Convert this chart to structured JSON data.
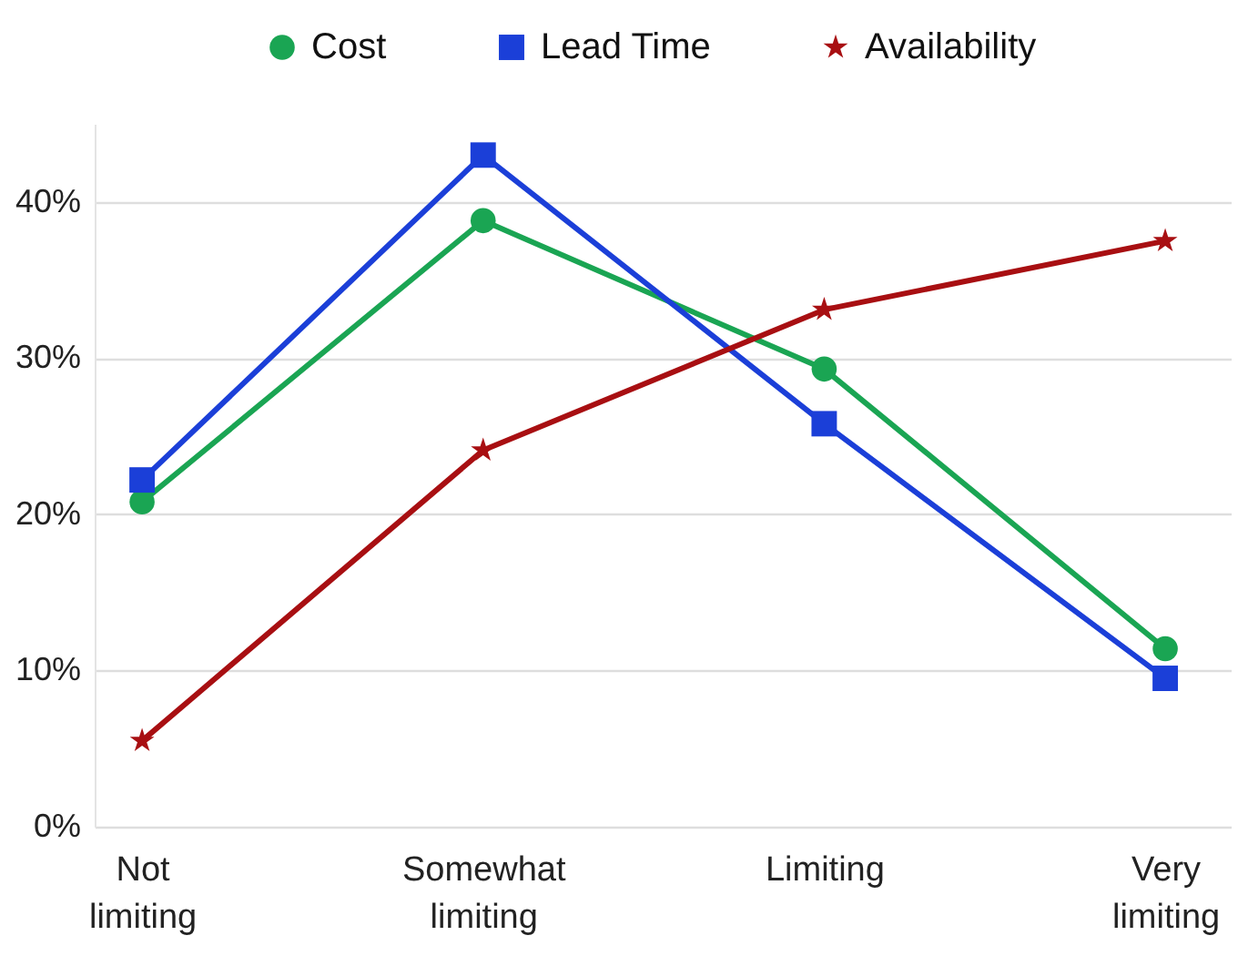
{
  "chart_data": {
    "type": "line",
    "categories": [
      "Not limiting",
      "Somewhat limiting",
      "Limiting",
      "Very limiting"
    ],
    "series": [
      {
        "name": "Cost",
        "color": "#1aa553",
        "marker": "circle",
        "line_style": "solid",
        "values": [
          20.8,
          38.8,
          29.3,
          11.4
        ]
      },
      {
        "name": "Lead Time",
        "color": "#1b3fd8",
        "marker": "square",
        "line_style": "solid",
        "values": [
          22.2,
          43,
          25.8,
          9.5
        ]
      },
      {
        "name": "Availability",
        "color": "#a80f12",
        "marker": "star",
        "line_style": "solid",
        "values": [
          5.5,
          24.1,
          33.1,
          37.5
        ]
      }
    ],
    "ylim": [
      0,
      45
    ],
    "yticks": [
      {
        "value": 0,
        "label": "0%"
      },
      {
        "value": 10,
        "label": "10%"
      },
      {
        "value": 20,
        "label": "20%"
      },
      {
        "value": 30,
        "label": "30%"
      },
      {
        "value": 40,
        "label": "40%"
      }
    ],
    "grid": "y",
    "legend": "top"
  }
}
